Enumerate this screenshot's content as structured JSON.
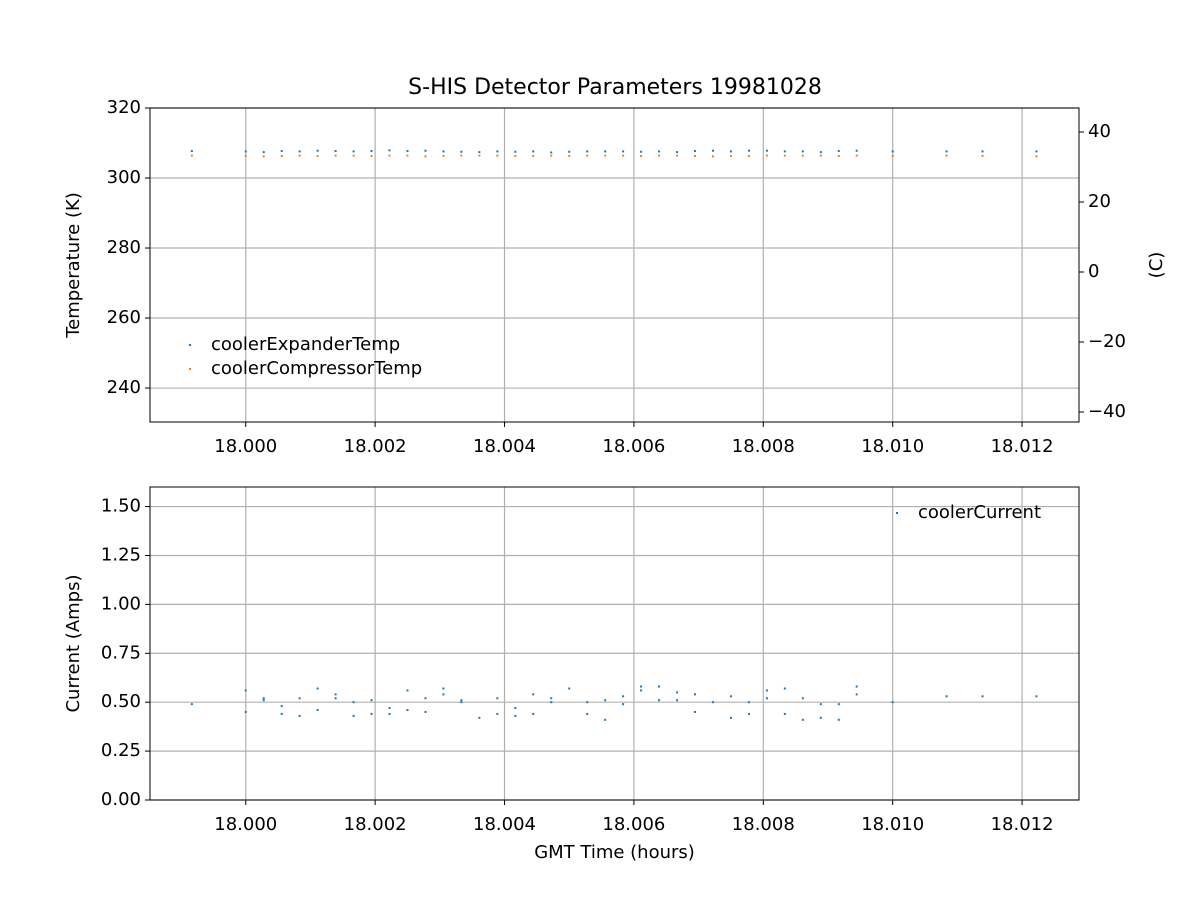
{
  "chart_data": [
    {
      "type": "scatter",
      "title": "S-HIS Detector Parameters 19981028",
      "ylabel": "Temperature (K)",
      "y2label": "(C)",
      "x": [
        17.999167,
        18.0,
        18.000278,
        18.000556,
        18.000833,
        18.001111,
        18.001389,
        18.001667,
        18.001944,
        18.002222,
        18.0025,
        18.002778,
        18.003056,
        18.003333,
        18.003611,
        18.003889,
        18.004167,
        18.004444,
        18.004722,
        18.005,
        18.005278,
        18.005556,
        18.005833,
        18.006111,
        18.006389,
        18.006667,
        18.006944,
        18.007222,
        18.0075,
        18.007778,
        18.008056,
        18.008333,
        18.008611,
        18.008889,
        18.009167,
        18.009444,
        18.01,
        18.010833,
        18.011389,
        18.012222
      ],
      "series": [
        {
          "name": "coolerExpanderTemp",
          "color": "#1f77b4",
          "values": [
            307.7,
            307.6,
            307.4,
            307.7,
            307.6,
            307.8,
            307.7,
            307.6,
            307.7,
            307.9,
            307.7,
            307.8,
            307.6,
            307.5,
            307.4,
            307.6,
            307.5,
            307.6,
            307.3,
            307.5,
            307.6,
            307.6,
            307.6,
            307.5,
            307.6,
            307.4,
            307.7,
            307.8,
            307.6,
            307.8,
            307.8,
            307.6,
            307.6,
            307.4,
            307.7,
            307.8,
            307.6,
            307.6,
            307.6,
            307.6
          ]
        },
        {
          "name": "coolerCompressorTemp",
          "color": "#ff7f0e",
          "values": [
            306.4,
            306.3,
            306.2,
            306.3,
            306.4,
            306.3,
            306.4,
            306.4,
            306.3,
            306.4,
            306.4,
            306.2,
            306.3,
            306.4,
            306.4,
            306.4,
            306.3,
            306.3,
            306.4,
            306.3,
            306.4,
            306.4,
            306.4,
            306.3,
            306.4,
            306.4,
            306.3,
            306.2,
            306.3,
            306.3,
            306.4,
            306.4,
            306.4,
            306.4,
            306.3,
            306.4,
            306.3,
            306.4,
            306.3,
            306.2
          ]
        }
      ],
      "xlim": [
        17.99852,
        18.01288
      ],
      "xticks": [
        {
          "value": 18.0,
          "label": "18.000"
        },
        {
          "value": 18.002,
          "label": "18.002"
        },
        {
          "value": 18.004,
          "label": "18.004"
        },
        {
          "value": 18.006,
          "label": "18.006"
        },
        {
          "value": 18.008,
          "label": "18.008"
        },
        {
          "value": 18.01,
          "label": "18.010"
        },
        {
          "value": 18.012,
          "label": "18.012"
        }
      ],
      "ylim": [
        230.3,
        320
      ],
      "yticks": [
        240,
        260,
        280,
        300,
        320
      ],
      "y2lim": [
        -42.85,
        46.85
      ],
      "y2ticks": [
        {
          "value": -40,
          "label": "−40"
        },
        {
          "value": -20,
          "label": "−20"
        },
        0,
        20,
        40
      ],
      "grid": true,
      "legend": "lower left"
    },
    {
      "type": "scatter",
      "ylabel": "Current (Amps)",
      "xlabel": "GMT Time (hours)",
      "x": [
        17.999167,
        18.0,
        18.0,
        18.000278,
        18.000278,
        18.000556,
        18.000556,
        18.000833,
        18.000833,
        18.001111,
        18.001111,
        18.001389,
        18.001389,
        18.001667,
        18.001667,
        18.001944,
        18.001944,
        18.002222,
        18.002222,
        18.0025,
        18.0025,
        18.002778,
        18.002778,
        18.003056,
        18.003056,
        18.003333,
        18.003333,
        18.003611,
        18.003889,
        18.003889,
        18.004167,
        18.004167,
        18.004444,
        18.004444,
        18.004722,
        18.004722,
        18.005,
        18.005278,
        18.005278,
        18.005556,
        18.005556,
        18.005833,
        18.005833,
        18.006111,
        18.006111,
        18.006389,
        18.006389,
        18.006667,
        18.006667,
        18.006944,
        18.006944,
        18.007222,
        18.0075,
        18.0075,
        18.007778,
        18.007778,
        18.008056,
        18.008056,
        18.008333,
        18.008333,
        18.008611,
        18.008611,
        18.008889,
        18.008889,
        18.009167,
        18.009167,
        18.009444,
        18.009444,
        18.01,
        18.010833,
        18.011389,
        18.012222
      ],
      "series": [
        {
          "name": "coolerCurrent",
          "color": "#1f77b4",
          "values": [
            0.49,
            0.56,
            0.45,
            0.52,
            0.51,
            0.48,
            0.44,
            0.52,
            0.43,
            0.57,
            0.46,
            0.54,
            0.52,
            0.5,
            0.43,
            0.51,
            0.44,
            0.47,
            0.44,
            0.56,
            0.46,
            0.52,
            0.45,
            0.57,
            0.54,
            0.51,
            0.5,
            0.42,
            0.52,
            0.44,
            0.47,
            0.43,
            0.54,
            0.44,
            0.52,
            0.5,
            0.57,
            0.5,
            0.44,
            0.51,
            0.41,
            0.53,
            0.49,
            0.58,
            0.56,
            0.58,
            0.51,
            0.55,
            0.51,
            0.54,
            0.45,
            0.5,
            0.53,
            0.42,
            0.5,
            0.44,
            0.56,
            0.52,
            0.57,
            0.44,
            0.52,
            0.41,
            0.49,
            0.42,
            0.49,
            0.41,
            0.58,
            0.54,
            0.5,
            0.53,
            0.53,
            0.53
          ]
        }
      ],
      "xlim": [
        17.99852,
        18.01288
      ],
      "xticks": [
        {
          "value": 18.0,
          "label": "18.000"
        },
        {
          "value": 18.002,
          "label": "18.002"
        },
        {
          "value": 18.004,
          "label": "18.004"
        },
        {
          "value": 18.006,
          "label": "18.006"
        },
        {
          "value": 18.008,
          "label": "18.008"
        },
        {
          "value": 18.01,
          "label": "18.010"
        },
        {
          "value": 18.012,
          "label": "18.012"
        }
      ],
      "ylim": [
        0,
        1.6
      ],
      "yticks": [
        {
          "value": 0,
          "label": "0.00"
        },
        {
          "value": 0.25,
          "label": "0.25"
        },
        {
          "value": 0.5,
          "label": "0.50"
        },
        {
          "value": 0.75,
          "label": "0.75"
        },
        {
          "value": 1.0,
          "label": "1.00"
        },
        {
          "value": 1.25,
          "label": "1.25"
        },
        {
          "value": 1.5,
          "label": "1.50"
        }
      ],
      "grid": true,
      "legend": "upper right"
    }
  ]
}
